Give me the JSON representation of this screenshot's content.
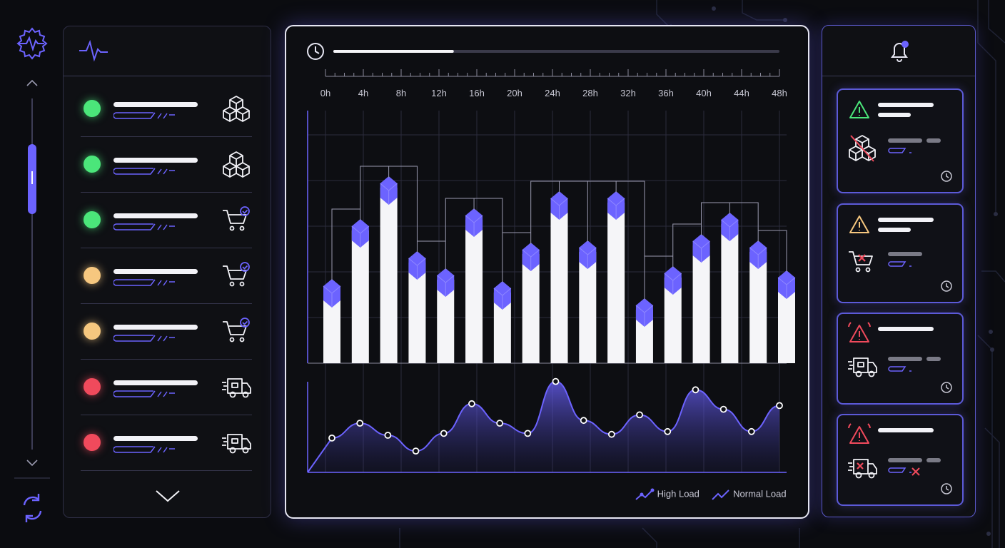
{
  "colors": {
    "accent": "#6c63ff",
    "ok": "#4be67a",
    "warn": "#f6c77f",
    "error": "#f04a5c",
    "bar": "#f5f5f8"
  },
  "sidebar": {
    "logo_icon": "gear-pulse-icon",
    "refresh_icon": "refresh-icon",
    "scroll_up_icon": "chevron-up-icon",
    "scroll_down_icon": "chevron-down-icon",
    "scroll_position": 0.2
  },
  "list": {
    "header_icon": "pulse-icon",
    "expand_icon": "chevron-down-icon",
    "items": [
      {
        "status": "green",
        "icon": "cubes-icon"
      },
      {
        "status": "green",
        "icon": "cubes-icon"
      },
      {
        "status": "green",
        "icon": "cart-check-icon"
      },
      {
        "status": "amber",
        "icon": "cart-check-icon"
      },
      {
        "status": "amber",
        "icon": "cart-check-icon"
      },
      {
        "status": "red",
        "icon": "truck-icon"
      },
      {
        "status": "red",
        "icon": "truck-icon"
      }
    ]
  },
  "timeline": {
    "icon": "clock-icon",
    "progress": 0.27
  },
  "chart_data": {
    "type": "bar",
    "categories": [
      "0h",
      "4h",
      "8h",
      "12h",
      "16h",
      "20h",
      "24h",
      "28h",
      "32h",
      "36h",
      "40h",
      "44h",
      "48h"
    ],
    "bars_relative_height": [
      0.34,
      0.62,
      0.82,
      0.47,
      0.39,
      0.67,
      0.33,
      0.51,
      0.75,
      0.52,
      0.75,
      0.25,
      0.4,
      0.55,
      0.65,
      0.52,
      0.38
    ],
    "area_relative_height": [
      0.37,
      0.53,
      0.4,
      0.23,
      0.42,
      0.74,
      0.53,
      0.42,
      0.98,
      0.56,
      0.41,
      0.62,
      0.44,
      0.89,
      0.68,
      0.44,
      0.72
    ],
    "legend": [
      {
        "label": "High Load",
        "icon": "trend-up-icon"
      },
      {
        "label": "Normal Load",
        "icon": "trend-line-icon"
      }
    ],
    "grid": true
  },
  "alerts": {
    "bell_icon": "bell-icon",
    "items": [
      {
        "level": "green",
        "warn_icon": "warning-triangle-icon",
        "icon": "cubes-crossed-icon"
      },
      {
        "level": "amber",
        "warn_icon": "warning-triangle-icon",
        "icon": "cart-x-icon"
      },
      {
        "level": "red",
        "warn_icon": "warning-triangle-icon",
        "icon": "truck-icon"
      },
      {
        "level": "red",
        "warn_icon": "warning-triangle-icon",
        "icon": "truck-x-icon"
      }
    ]
  }
}
